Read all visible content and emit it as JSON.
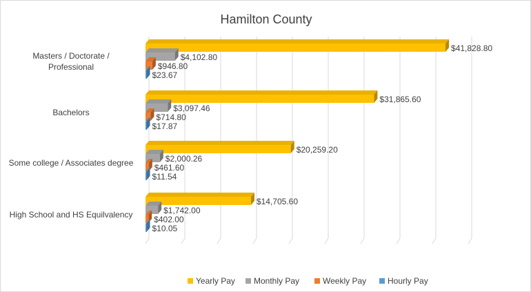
{
  "chart_data": {
    "type": "bar",
    "orientation": "horizontal",
    "style": "3d-clustered",
    "title": "Hamilton County",
    "categories": [
      [
        "Masters / Doctorate /",
        "Professional"
      ],
      [
        "Bachelors"
      ],
      [
        "Some college / Associates degree"
      ],
      [
        "High School and HS Equilvalency"
      ]
    ],
    "series": [
      {
        "name": "Yearly Pay",
        "color": "#FFC000",
        "values": [
          41828.8,
          31865.6,
          20259.2,
          14705.6
        ],
        "labels": [
          "$41,828.80",
          "$31,865.60",
          "$20,259.20",
          "$14,705.60"
        ]
      },
      {
        "name": "Monthly Pay",
        "color": "#A5A5A5",
        "values": [
          4102.8,
          3097.46,
          2000.26,
          1742.0
        ],
        "labels": [
          "$4,102.80",
          "$3,097.46",
          "$2,000.26",
          "$1,742.00"
        ]
      },
      {
        "name": "Weekly Pay",
        "color": "#ED7D31",
        "values": [
          946.8,
          714.8,
          461.6,
          402.0
        ],
        "labels": [
          "$946.80",
          "$714.80",
          "$461.60",
          "$402.00"
        ]
      },
      {
        "name": "Hourly Pay",
        "color": "#5B9BD5",
        "values": [
          23.67,
          17.87,
          11.54,
          10.05
        ],
        "labels": [
          "$23.67",
          "$17.87",
          "$11.54",
          "$10.05"
        ]
      }
    ],
    "xlim": [
      0,
      45000
    ],
    "grid": true,
    "legend_position": "bottom"
  }
}
